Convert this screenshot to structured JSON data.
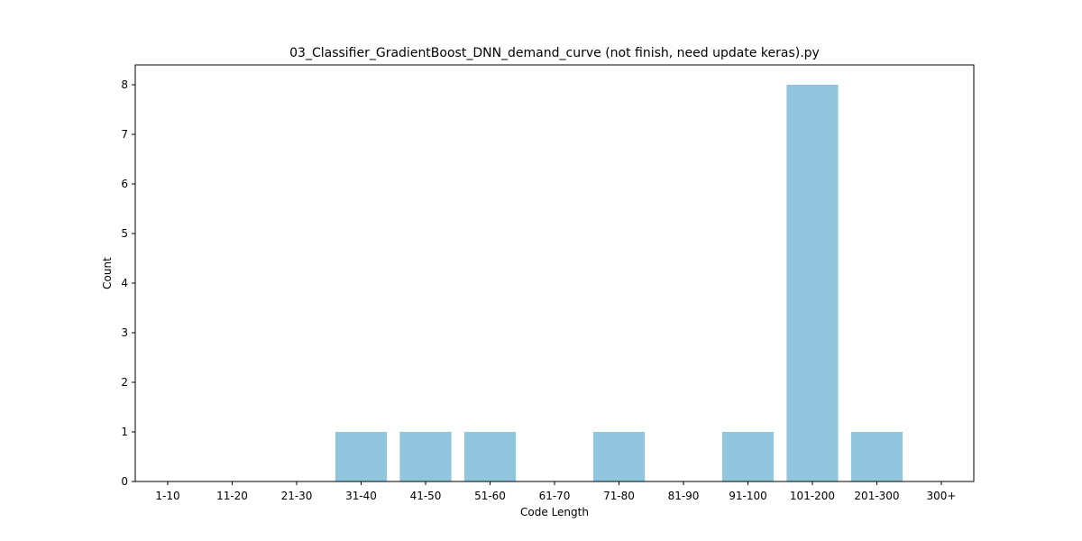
{
  "chart_data": {
    "type": "bar",
    "title": "03_Classifier_GradientBoost_DNN_demand_curve (not finish, need update keras).py",
    "xlabel": "Code Length",
    "ylabel": "Count",
    "categories": [
      "1-10",
      "11-20",
      "21-30",
      "31-40",
      "41-50",
      "51-60",
      "61-70",
      "71-80",
      "81-90",
      "91-100",
      "101-200",
      "201-300",
      "300+"
    ],
    "values": [
      0,
      0,
      0,
      1,
      1,
      1,
      0,
      1,
      0,
      1,
      8,
      1,
      0
    ],
    "yticks": [
      0,
      1,
      2,
      3,
      4,
      5,
      6,
      7,
      8
    ],
    "ylim": [
      0,
      8.4
    ],
    "bar_color": "#92c5de",
    "grid": false,
    "legend": "none"
  }
}
